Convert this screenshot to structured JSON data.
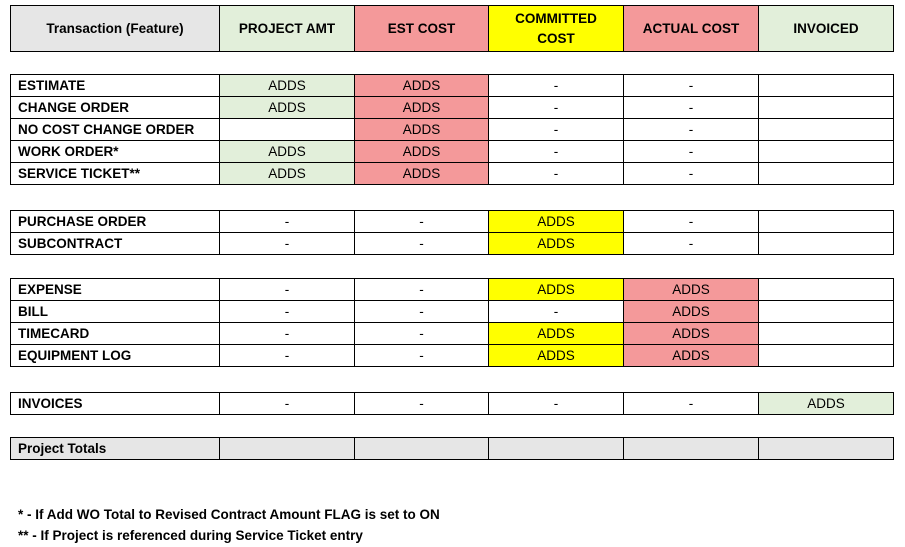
{
  "header": [
    "Transaction (Feature)",
    "PROJECT AMT",
    "EST COST",
    "COMMITTED COST",
    "ACTUAL COST",
    "INVOICED"
  ],
  "groups": [
    [
      {
        "label": "ESTIMATE",
        "cells": [
          "ADDS",
          "ADDS",
          "-",
          "-",
          ""
        ]
      },
      {
        "label": "CHANGE ORDER",
        "cells": [
          "ADDS",
          "ADDS",
          "-",
          "-",
          ""
        ]
      },
      {
        "label": "NO COST CHANGE ORDER",
        "cells": [
          "",
          "ADDS",
          "-",
          "-",
          ""
        ]
      },
      {
        "label": "WORK ORDER*",
        "cells": [
          "ADDS",
          "ADDS",
          "-",
          "-",
          ""
        ]
      },
      {
        "label": "SERVICE TICKET**",
        "cells": [
          "ADDS",
          "ADDS",
          "-",
          "-",
          ""
        ]
      }
    ],
    [
      {
        "label": "PURCHASE ORDER",
        "cells": [
          "-",
          "-",
          "ADDS",
          "-",
          ""
        ]
      },
      {
        "label": "SUBCONTRACT",
        "cells": [
          "-",
          "-",
          "ADDS",
          "-",
          ""
        ]
      }
    ],
    [
      {
        "label": "EXPENSE",
        "cells": [
          "-",
          "-",
          "ADDS",
          "ADDS",
          ""
        ]
      },
      {
        "label": "BILL",
        "cells": [
          "-",
          "-",
          "-",
          "ADDS",
          ""
        ]
      },
      {
        "label": "TIMECARD",
        "cells": [
          "-",
          "-",
          "ADDS",
          "ADDS",
          ""
        ]
      },
      {
        "label": "EQUIPMENT LOG",
        "cells": [
          "-",
          "-",
          "ADDS",
          "ADDS",
          ""
        ]
      }
    ],
    [
      {
        "label": "INVOICES",
        "cells": [
          "-",
          "-",
          "-",
          "-",
          "ADDS"
        ]
      }
    ],
    [
      {
        "label": "Project Totals",
        "cells": [
          "",
          "",
          "",
          "",
          ""
        ]
      }
    ]
  ],
  "footnotes": [
    "* - If Add WO Total to Revised Contract Amount FLAG is set to ON",
    "** - If Project is referenced during Service Ticket entry"
  ],
  "colors": {
    "green": "#e2efda",
    "red": "#f4999a",
    "yellow": "#ffff00",
    "gray": "#e6e6e6"
  }
}
